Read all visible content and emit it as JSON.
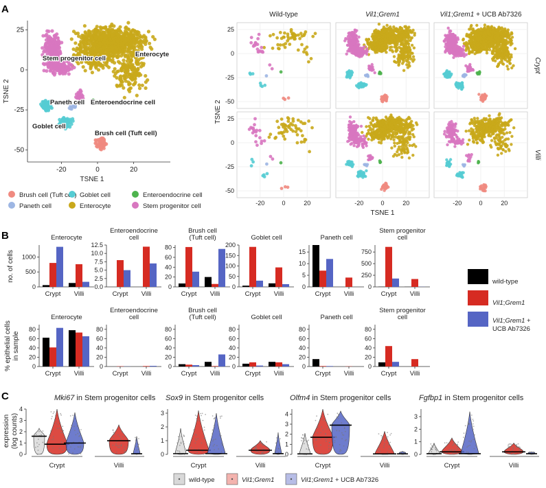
{
  "colors": {
    "wildtype": "#000000",
    "vil1": "#d62b22",
    "ucb": "#5565c4",
    "brush": "#f08a80",
    "paneth": "#9db6e3",
    "goblet": "#55ccd3",
    "enterocyte": "#c9a81b",
    "entero_endo": "#4eb34e",
    "stem": "#d877c0",
    "panel_bg": "#ebebeb"
  },
  "panel_letters": [
    "A",
    "B",
    "C"
  ],
  "panelA": {
    "main": {
      "xlabel": "TSNE 1",
      "ylabel": "TSNE 2",
      "xticks": [
        "-20",
        "0",
        "20"
      ],
      "yticks": [
        "25",
        "0",
        "-25",
        "-50"
      ],
      "labels": [
        "Stem progenitor cell",
        "Enterocyte",
        "Paneth cell",
        "Enteroendocrine cell",
        "Goblet cell",
        "Brush cell (Tuft cell)"
      ]
    },
    "legend": [
      "Brush cell (Tuft cell)",
      "Goblet cell",
      "Enteroendocrine cell",
      "Paneth cell",
      "Enterocyte",
      "Stem progenitor cell"
    ],
    "facets": {
      "columns": [
        "Wild-type",
        "Vil1;Grem1",
        "Vil1;Grem1 + UCB Ab7326"
      ],
      "rows": [
        "Crypt",
        "Villi"
      ],
      "xlabel": "TSNE 1",
      "ylabel": "TSNE 2",
      "xticks": [
        "-20",
        "0",
        "20"
      ],
      "yticks": [
        "25",
        "0",
        "-25",
        "-50"
      ]
    }
  },
  "chart_data": [
    {
      "type": "bar",
      "panel": "B-counts",
      "ylabel": "no. of cells",
      "categories": [
        "Crypt",
        "Villi"
      ],
      "series_names": [
        "wild-type",
        "Vil1;Grem1",
        "Vil1;Grem1 + UCB Ab7326"
      ],
      "facets": [
        {
          "title": [
            "Enterocyte"
          ],
          "ymax": 1400,
          "yticks": [
            "0",
            "500",
            "1000"
          ],
          "tickvals": [
            0,
            500,
            1000
          ],
          "values": [
            [
              60,
              800,
              1340
            ],
            [
              130,
              760,
              170
            ]
          ]
        },
        {
          "title": [
            "Enteroendocrine",
            "cell"
          ],
          "ymax": 12.5,
          "yticks": [
            "0.0",
            "2.5",
            "5.0",
            "7.5",
            "10.0",
            "12.5"
          ],
          "tickvals": [
            0,
            2.5,
            5,
            7.5,
            10,
            12.5
          ],
          "values": [
            [
              0,
              8,
              5
            ],
            [
              0,
              12,
              7
            ]
          ]
        },
        {
          "title": [
            "Brush cell",
            "(Tuft cell)"
          ],
          "ymax": 85,
          "yticks": [
            "0",
            "20",
            "40",
            "60",
            "80"
          ],
          "tickvals": [
            0,
            20,
            40,
            60,
            80
          ],
          "values": [
            [
              7,
              81,
              31
            ],
            [
              20,
              6,
              77
            ]
          ]
        },
        {
          "title": [
            "Goblet cell"
          ],
          "ymax": 200,
          "yticks": [
            "0",
            "50",
            "100",
            "150",
            "200"
          ],
          "tickvals": [
            0,
            50,
            100,
            150,
            200
          ],
          "values": [
            [
              6,
              191,
              30
            ],
            [
              17,
              93,
              13
            ]
          ]
        },
        {
          "title": [
            "Paneth cell"
          ],
          "ymax": 18,
          "yticks": [
            "0",
            "5",
            "10",
            "15"
          ],
          "tickvals": [
            0,
            5,
            10,
            15
          ],
          "values": [
            [
              18,
              7,
              12
            ],
            [
              0,
              4,
              0
            ]
          ]
        },
        {
          "title": [
            "Stem progenitor",
            "cell"
          ],
          "ymax": 900,
          "yticks": [
            "0",
            "250",
            "500",
            "750"
          ],
          "tickvals": [
            0,
            250,
            500,
            750
          ],
          "values": [
            [
              5,
              860,
              180
            ],
            [
              3,
              170,
              3
            ]
          ]
        }
      ]
    },
    {
      "type": "bar",
      "panel": "B-percent",
      "ylabel": [
        "% epithelial cells",
        "in sample"
      ],
      "categories": [
        "Crypt",
        "Villi"
      ],
      "ylim": [
        0,
        90
      ],
      "yticks": [
        "0",
        "20",
        "40",
        "60",
        "80"
      ],
      "tickvals": [
        0,
        20,
        40,
        60,
        80
      ],
      "facets": [
        {
          "title": [
            "Enterocyte"
          ],
          "values": [
            [
              62,
              41,
              83
            ],
            [
              78,
              73,
              65
            ]
          ]
        },
        {
          "title": [
            "Enteroendocrine",
            "cell"
          ],
          "values": [
            [
              0,
              0.6,
              0.3
            ],
            [
              0,
              1,
              1.5
            ]
          ]
        },
        {
          "title": [
            "Brush cell",
            "(Tuft cell)"
          ],
          "values": [
            [
              5,
              4,
              3
            ],
            [
              10,
              1,
              26
            ]
          ]
        },
        {
          "title": [
            "Goblet cell"
          ],
          "values": [
            [
              6,
              9,
              2
            ],
            [
              10,
              9,
              5
            ]
          ]
        },
        {
          "title": [
            "Paneth cell"
          ],
          "values": [
            [
              16,
              1,
              1
            ],
            [
              0,
              0.5,
              0
            ]
          ]
        },
        {
          "title": [
            "Stem progenitor",
            "cell"
          ],
          "values": [
            [
              9,
              44,
              10
            ],
            [
              0,
              16,
              0
            ]
          ]
        }
      ]
    },
    {
      "type": "violin",
      "panel": "C",
      "ylabel": [
        "expression",
        "(log counts)"
      ],
      "categories": [
        "Crypt",
        "Villi"
      ],
      "series_names": [
        "wild-type",
        "Vil1;Grem1",
        "Vil1;Grem1 + UCB Ab7326"
      ],
      "genes": [
        {
          "gene": "Mki67",
          "ymax": 4,
          "yticks": [
            "0",
            "1",
            "2",
            "3",
            "4"
          ],
          "tickvals": [
            0,
            1,
            2,
            3,
            4
          ],
          "max": [
            [
              2.3,
              4.0,
              3.7
            ],
            [
              0,
              2.6,
              1.6
            ]
          ],
          "median": [
            [
              1.6,
              0.9,
              1.0
            ],
            [
              0,
              1.2,
              0.05
            ]
          ]
        },
        {
          "gene": "Sox9",
          "ymax": 3.3,
          "yticks": [
            "0",
            "1",
            "2",
            "3"
          ],
          "tickvals": [
            0,
            1,
            2,
            3
          ],
          "max": [
            [
              1.9,
              3.2,
              3.0
            ],
            [
              0,
              1.0,
              1.6
            ]
          ],
          "median": [
            [
              0.05,
              0.3,
              0.05
            ],
            [
              0,
              0.3,
              0.05
            ]
          ]
        },
        {
          "gene": "Olfm4",
          "ymax": 4.5,
          "yticks": [
            "0",
            "1",
            "2",
            "3",
            "4"
          ],
          "tickvals": [
            0,
            1,
            2,
            3,
            4
          ],
          "max": [
            [
              2.1,
              4.5,
              4.3
            ],
            [
              0,
              2.3,
              0.3
            ]
          ],
          "median": [
            [
              0.05,
              1.7,
              2.9
            ],
            [
              0,
              0.05,
              0.05
            ]
          ]
        },
        {
          "gene": "Fgfbp1",
          "ymax": 3.6,
          "yticks": [
            "0",
            "1",
            "2",
            "3"
          ],
          "tickvals": [
            0,
            1,
            2,
            3
          ],
          "max": [
            [
              0.9,
              1.3,
              3.4
            ],
            [
              0,
              0.9,
              0.2
            ]
          ],
          "median": [
            [
              0.05,
              0.2,
              0.05
            ],
            [
              0,
              0.2,
              0.05
            ]
          ]
        }
      ],
      "title_suffix": " in Stem progenitor cells"
    }
  ],
  "legendB": [
    "wild-type",
    "Vil1;Grem1",
    "Vil1;Grem1 +",
    "UCB Ab7326"
  ],
  "legendC": [
    "wild-type",
    "Vil1;Grem1",
    "Vil1;Grem1 + UCB Ab7326"
  ]
}
